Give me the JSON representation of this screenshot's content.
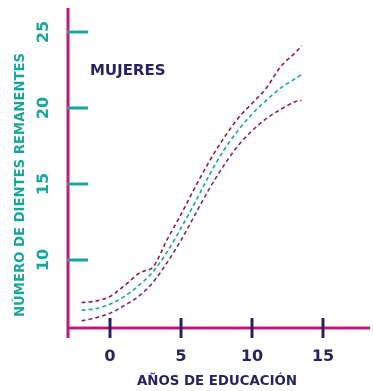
{
  "colors": {
    "x_axis": "#c2187e",
    "y_axis": "#c2187e",
    "y_ticks": "#1aa59a",
    "x_ticks": "#26235f",
    "y_title": "#1aa59a",
    "x_title": "#26235f",
    "panel_title": "#26235f"
  },
  "chart_data": {
    "type": "line",
    "title": "MUJERES",
    "xlabel": "AÑOS DE EDUCACIÓN",
    "ylabel": "NÚMERO DE DIENTES REMANENTES",
    "xlim": [
      -2.5,
      17
    ],
    "ylim": [
      5,
      28.5
    ],
    "xticks": [
      0,
      5,
      10,
      15
    ],
    "yticks": [
      10,
      15,
      20,
      25
    ],
    "grid": false,
    "series": [
      {
        "style": "dashed",
        "color": "#8b1e45",
        "x": [
          -2,
          -1,
          0,
          1,
          2,
          2.5,
          3,
          3.5,
          4,
          5,
          6,
          7,
          8,
          9,
          10,
          11,
          12,
          13,
          13.5
        ],
        "y": [
          7.2,
          7.3,
          7.6,
          8.3,
          9.1,
          9.3,
          9.5,
          10.3,
          11.3,
          13.0,
          14.8,
          16.5,
          18.0,
          19.3,
          20.3,
          21.3,
          22.7,
          23.6,
          24.1
        ]
      },
      {
        "style": "dashed",
        "color": "#1aa59a",
        "x": [
          -2,
          -1,
          0,
          1,
          2,
          3,
          4,
          5,
          6,
          7,
          8,
          9,
          10,
          11,
          12,
          13,
          13.5
        ],
        "y": [
          6.7,
          6.8,
          7.1,
          7.6,
          8.3,
          9.2,
          10.5,
          12.1,
          13.8,
          15.6,
          17.2,
          18.5,
          19.6,
          20.5,
          21.3,
          21.9,
          22.2
        ]
      },
      {
        "style": "dashed",
        "color": "#7a2b6b",
        "x": [
          -2,
          -1,
          0,
          1,
          2,
          3,
          4,
          5,
          6,
          7,
          8,
          9,
          10,
          11,
          12,
          13,
          13.5
        ],
        "y": [
          6.0,
          6.2,
          6.5,
          7.0,
          7.6,
          8.5,
          9.8,
          11.3,
          13.0,
          14.7,
          16.2,
          17.5,
          18.5,
          19.3,
          19.9,
          20.4,
          20.5
        ]
      }
    ]
  }
}
